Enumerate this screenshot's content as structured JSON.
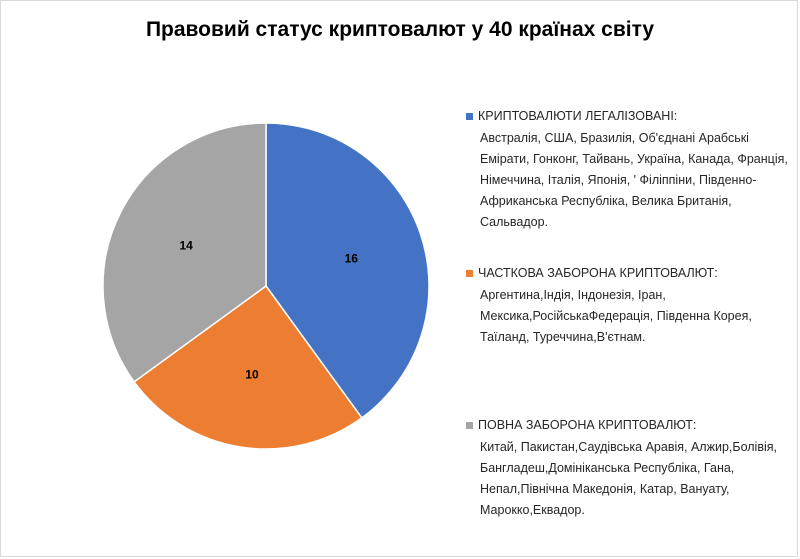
{
  "chart_data": {
    "type": "pie",
    "title": "Правовий статус криптовалют у 40 країнах світу",
    "slices": [
      {
        "label": "КРИПТОВАЛЮТИ ЛЕГАЛІЗОВАНІ:",
        "countries": "Австралія, США, Бразилія, Об'єднані Арабські Емірати, Гонконг, Тайвань, Україна, Канада, Франція, Німеччина, Італія, Японія, ' Філіппіни, Південно-Африканська Республіка, Велика Британія, Сальвадор.",
        "value": 16,
        "color": "#4472C4"
      },
      {
        "label": "ЧАСТКОВА ЗАБОРОНА КРИПТОВАЛЮТ:",
        "countries": "Аргентина,Індія, Індонезія, Іран, Мексика,РосійськаФедерація, Південна Корея, Таїланд, Туреччина,В'єтнам.",
        "value": 10,
        "color": "#ED7D31"
      },
      {
        "label": "ПОВНА ЗАБОРОНА КРИПТОВАЛЮТ:",
        "countries": "Китай, Пакистан,Саудівська Аравія, Алжир,Болівія, Бангладеш,Домініканська Республіка, Гана, Непал,Північна Македонія, Катар, Вануату, Марокко,Еквадор.",
        "value": 14,
        "color": "#A5A5A5"
      }
    ],
    "legend_position": "right"
  }
}
